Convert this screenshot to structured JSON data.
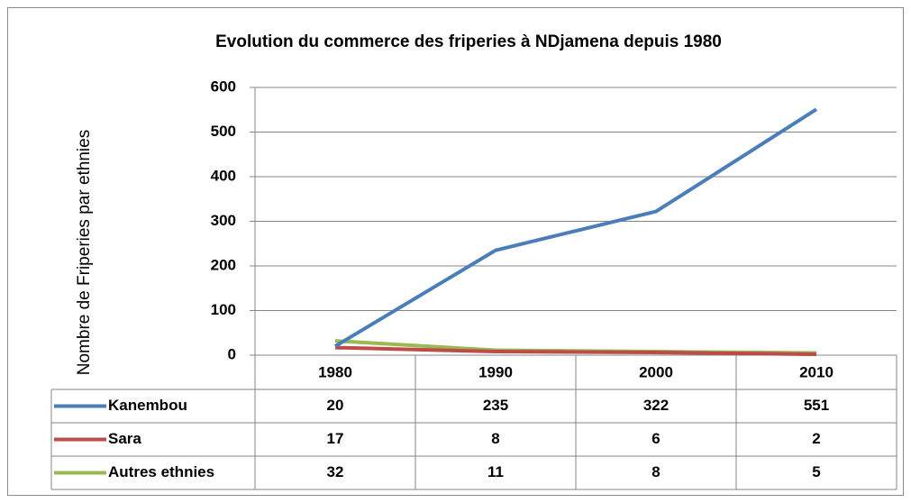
{
  "chart_data": {
    "type": "line",
    "title": "Evolution du commerce des friperies à NDjamena depuis 1980",
    "y_label": "Nombre de Friperies par ethnies",
    "categories": [
      "1980",
      "1990",
      "2000",
      "2010"
    ],
    "series": [
      {
        "name": "Kanembou",
        "color": "#4a7ebb",
        "values": [
          20,
          235,
          322,
          551
        ]
      },
      {
        "name": "Sara",
        "color": "#be4b48",
        "values": [
          17,
          8,
          6,
          2
        ]
      },
      {
        "name": "Autres ethnies",
        "color": "#98b954",
        "values": [
          32,
          11,
          8,
          5
        ]
      }
    ],
    "ylim": [
      0,
      600
    ],
    "yticks": [
      0,
      100,
      200,
      300,
      400,
      500,
      600
    ],
    "grid": true
  }
}
